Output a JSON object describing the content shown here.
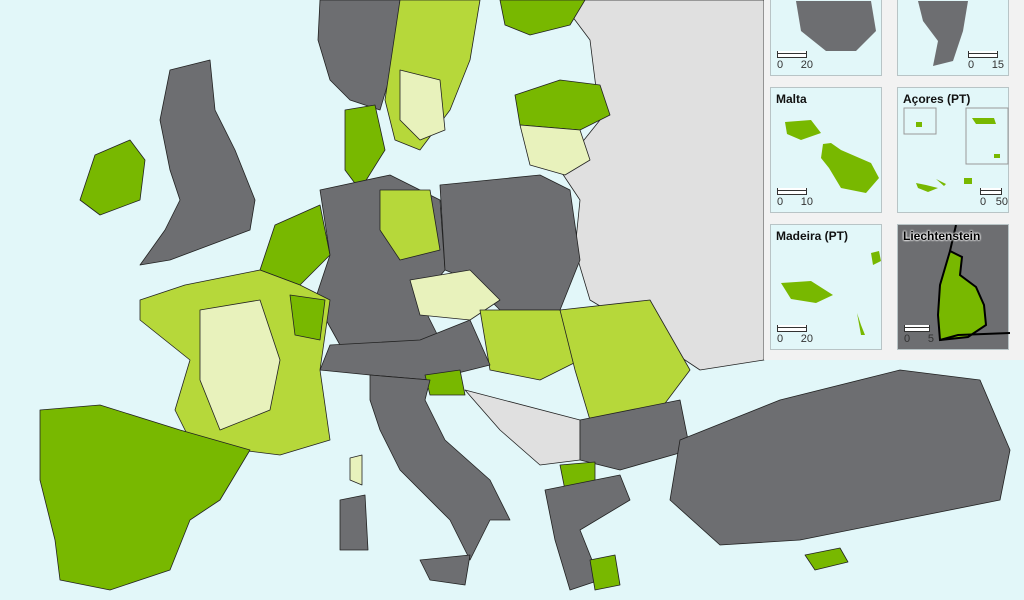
{
  "legend_colors": {
    "class_high": "#78b800",
    "class_mid": "#b6d83a",
    "class_low": "#e8f2bc",
    "no_data_eu": "#6d6e71",
    "non_eu": "#e0e0e0",
    "sea": "#e2f7f9"
  },
  "insets": [
    {
      "title": "",
      "scale_min": "0",
      "scale_max": "20"
    },
    {
      "title": "",
      "scale_min": "0",
      "scale_max": "15"
    },
    {
      "title": "Malta",
      "scale_min": "0",
      "scale_max": "10"
    },
    {
      "title": "Açores (PT)",
      "scale_min": "0",
      "scale_max": "50"
    },
    {
      "title": "Madeira (PT)",
      "scale_min": "0",
      "scale_max": "20"
    },
    {
      "title": "Liechtenstein",
      "scale_min": "0",
      "scale_max": "5"
    }
  ]
}
